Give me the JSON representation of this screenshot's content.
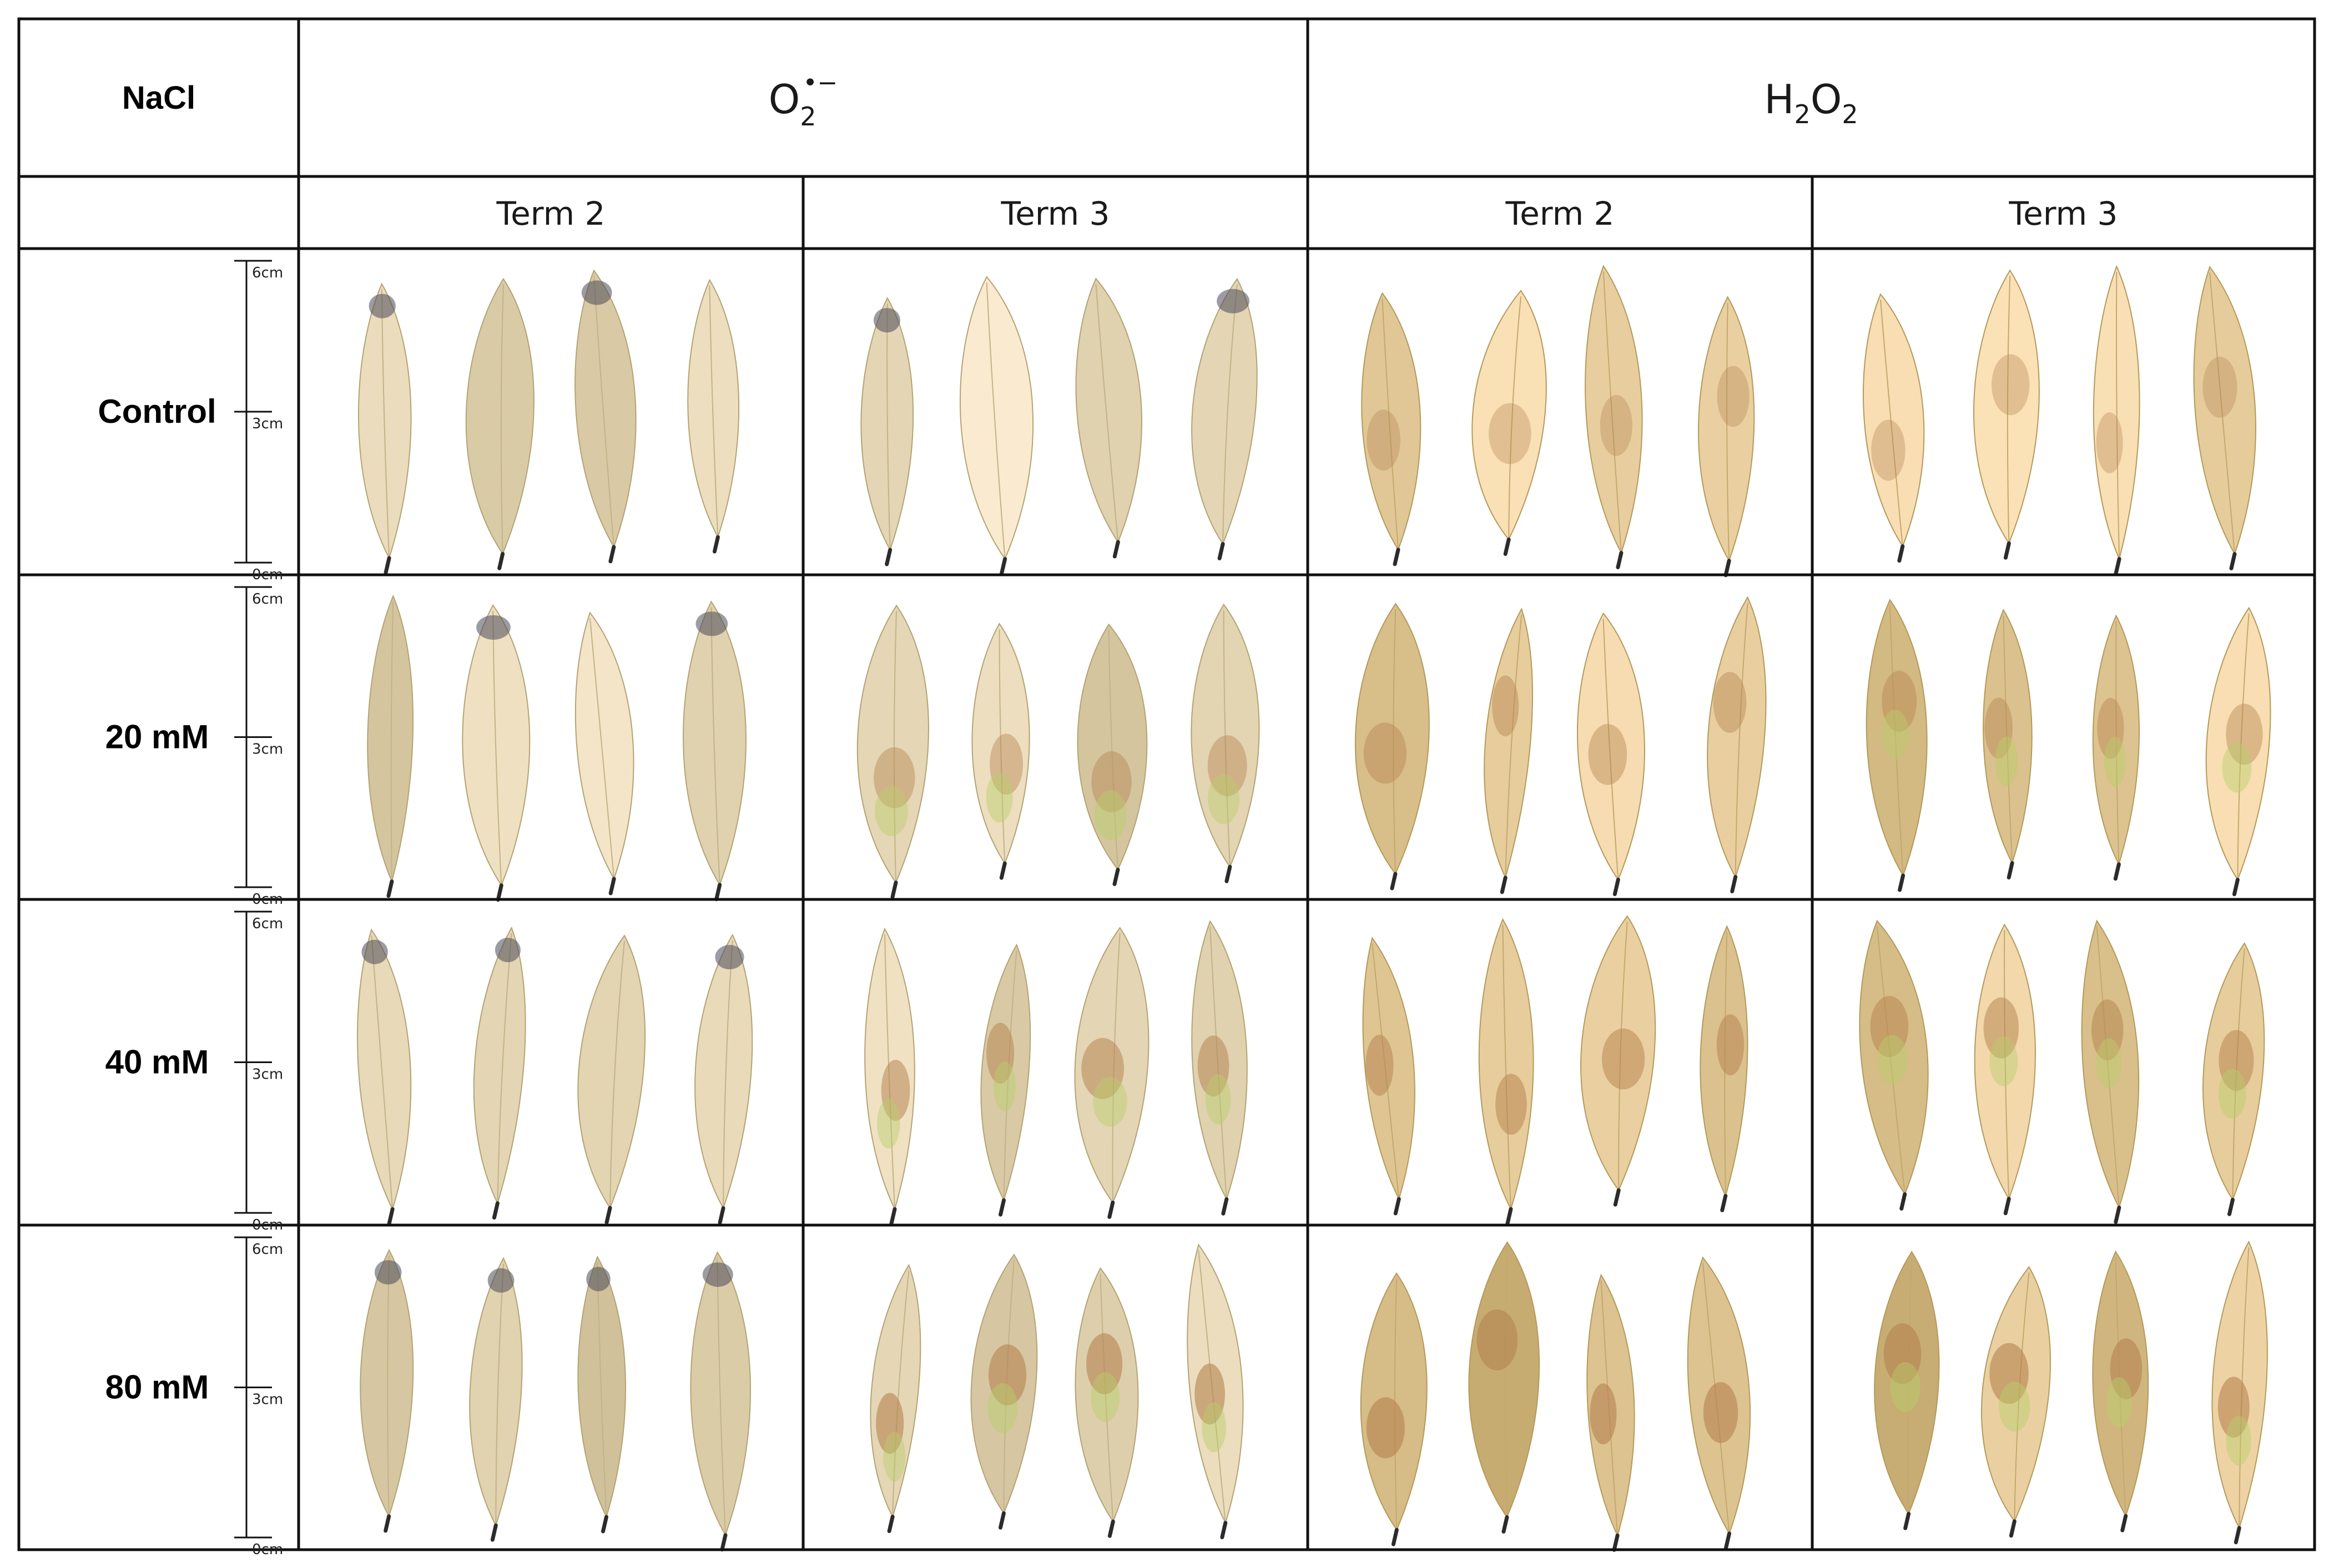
{
  "table": {
    "corner_label": "NaCl",
    "group_headers": [
      {
        "base": "O",
        "sub": "2",
        "sup": "•−"
      },
      {
        "parts": [
          {
            "t": "H"
          },
          {
            "t": "2",
            "sub": true
          },
          {
            "t": "O"
          },
          {
            "t": "2",
            "sub": true
          }
        ]
      }
    ],
    "term_headers": [
      "Term 2",
      "Term 3",
      "Term 2",
      "Term 3"
    ],
    "rows": [
      {
        "label": "Control"
      },
      {
        "label": "20 mM"
      },
      {
        "label": "40 mM"
      },
      {
        "label": "80 mM"
      }
    ],
    "scale_ticks": [
      "6cm",
      "3cm",
      "0cm"
    ]
  },
  "colors": {
    "border": "#111111",
    "leaf_base_o2": "#efe0c2",
    "leaf_base_h2o2": "#f0d6a8",
    "stain_dark": "#4a4a5a",
    "stain_brown": "#b5824f",
    "stain_green": "#b7cf6a",
    "petiole": "#2b2b2b"
  }
}
